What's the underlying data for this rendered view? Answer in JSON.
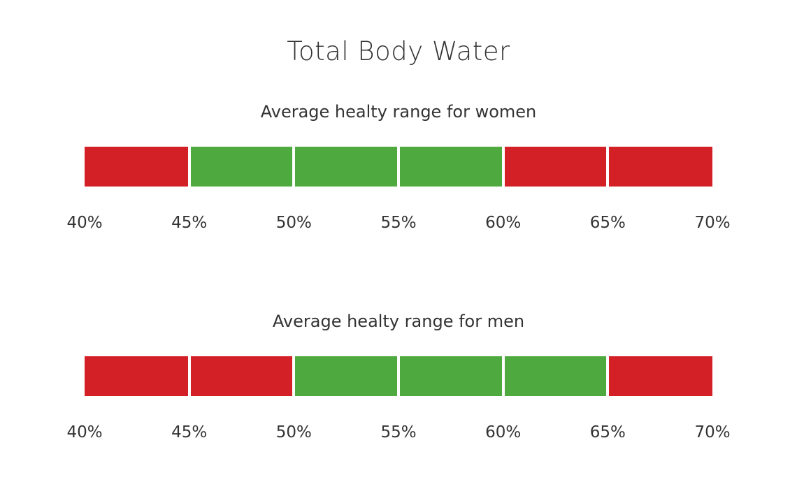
{
  "chart_data": {
    "type": "bar",
    "title": "Total Body Water",
    "tick_labels": [
      "40%",
      "45%",
      "50%",
      "55%",
      "60%",
      "65%",
      "70%"
    ],
    "xlim": [
      40,
      70
    ],
    "step": 5,
    "colors": {
      "healthy": "#4ea93f",
      "unhealthy": "#d32026"
    },
    "panels": [
      {
        "title": "Average healty range for women",
        "segments": [
          {
            "start": 40,
            "end": 45,
            "status": "unhealthy"
          },
          {
            "start": 45,
            "end": 50,
            "status": "healthy"
          },
          {
            "start": 50,
            "end": 55,
            "status": "healthy"
          },
          {
            "start": 55,
            "end": 60,
            "status": "healthy"
          },
          {
            "start": 60,
            "end": 65,
            "status": "unhealthy"
          },
          {
            "start": 65,
            "end": 70,
            "status": "unhealthy"
          }
        ]
      },
      {
        "title": "Average healty range for men",
        "segments": [
          {
            "start": 40,
            "end": 45,
            "status": "unhealthy"
          },
          {
            "start": 45,
            "end": 50,
            "status": "unhealthy"
          },
          {
            "start": 50,
            "end": 55,
            "status": "healthy"
          },
          {
            "start": 55,
            "end": 60,
            "status": "healthy"
          },
          {
            "start": 60,
            "end": 65,
            "status": "healthy"
          },
          {
            "start": 65,
            "end": 70,
            "status": "unhealthy"
          }
        ]
      }
    ]
  }
}
